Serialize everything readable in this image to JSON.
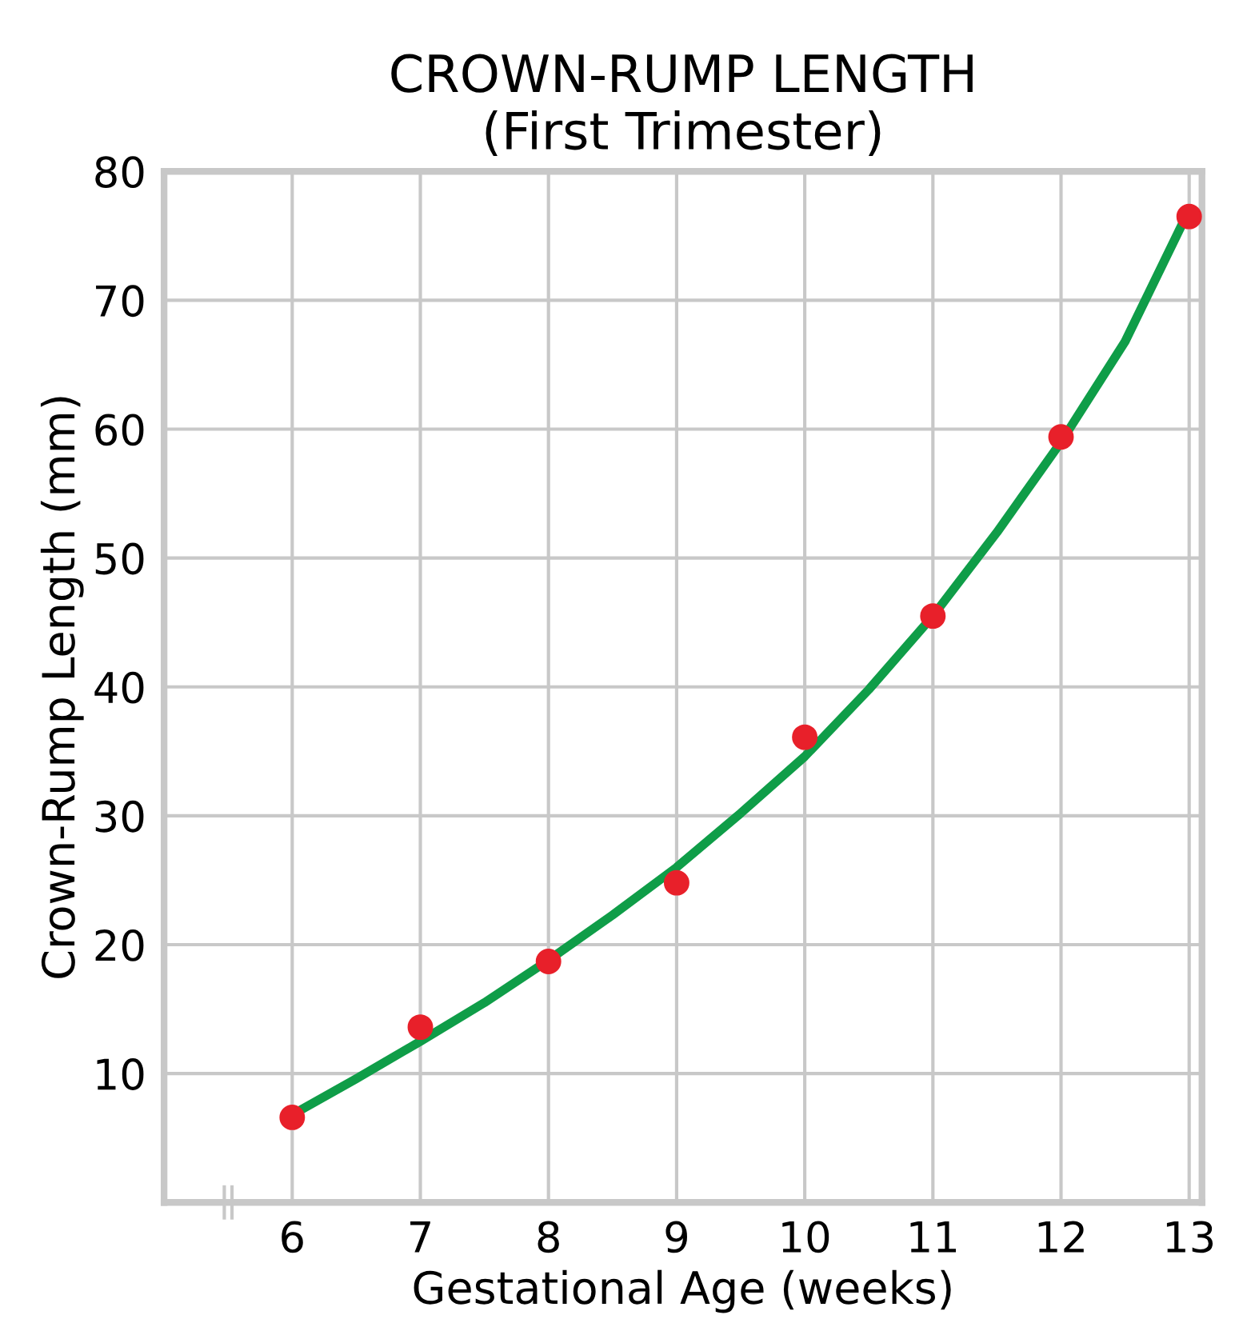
{
  "chart_data": {
    "type": "scatter",
    "title": "CROWN-RUMP LENGTH\n(First Trimester)",
    "xlabel": "Gestational Age (weeks)",
    "ylabel": "Crown-Rump Length (mm)",
    "xlim": [
      5,
      13.1
    ],
    "ylim": [
      0,
      80
    ],
    "xticks": [
      6,
      7,
      8,
      9,
      10,
      11,
      12,
      13
    ],
    "yticks": [
      10,
      20,
      30,
      40,
      50,
      60,
      70,
      80
    ],
    "grid": true,
    "series": [
      {
        "type": "line",
        "color": "#0f9d48",
        "x": [
          6,
          6.5,
          7,
          7.5,
          8,
          8.5,
          9,
          9.5,
          10,
          10.5,
          11,
          11.5,
          12,
          12.5,
          12.95
        ],
        "values": [
          6.8,
          9.6,
          12.5,
          15.5,
          18.8,
          22.3,
          26,
          30.2,
          34.6,
          39.8,
          45.5,
          52,
          59,
          66.8,
          76
        ],
        "marker": "none"
      },
      {
        "color": "#e8202a",
        "x": [
          6,
          7,
          8,
          9,
          10,
          11,
          12,
          13
        ],
        "values": [
          6.6,
          13.6,
          18.7,
          24.8,
          36.1,
          45.5,
          59.4,
          76.5
        ],
        "marker": "circle"
      }
    ]
  }
}
